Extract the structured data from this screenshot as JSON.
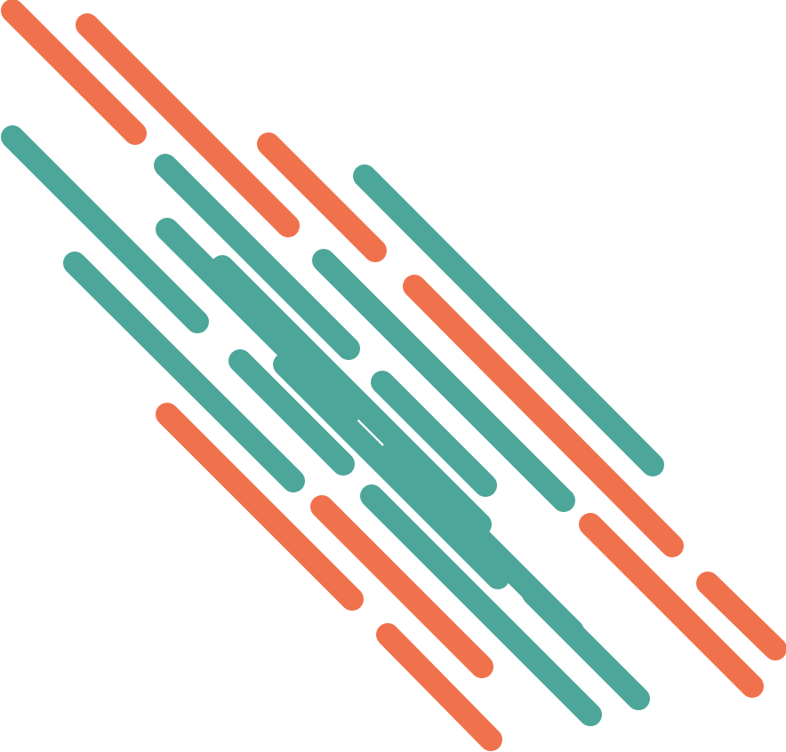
{
  "artwork": {
    "kind": "abstract diagonal rounded stripes",
    "background_color": "#ffffff",
    "colors": {
      "orange": "#f0724d",
      "teal": "#4ca699"
    }
  }
}
